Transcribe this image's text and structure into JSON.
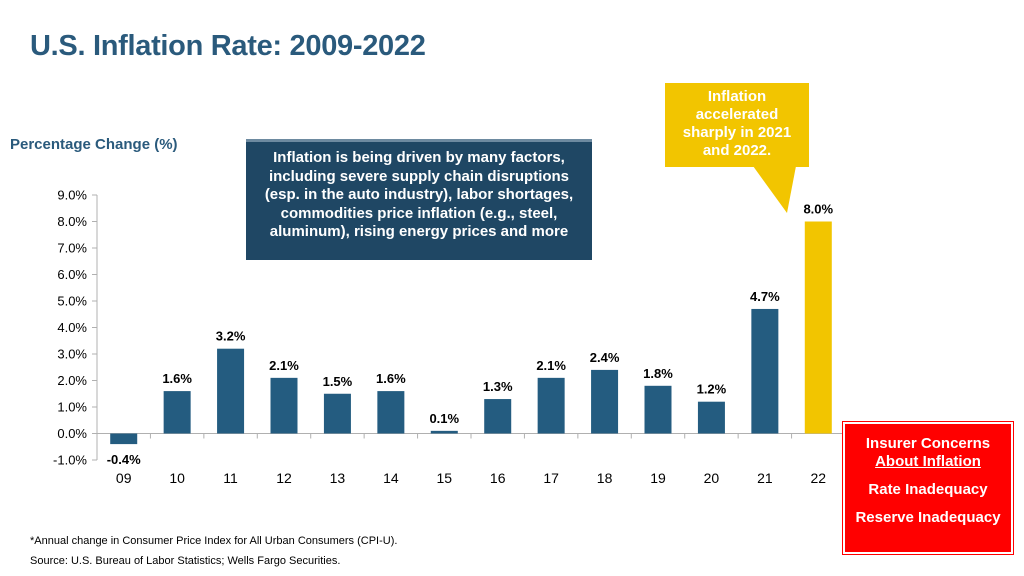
{
  "page": {
    "title": "U.S. Inflation Rate:  2009-2022",
    "callout_dark": "Inflation is being driven by many factors, including severe supply chain disruptions (esp. in the auto industry), labor shortages, commodities price inflation (e.g., steel, aluminum), rising energy prices and more",
    "callout_gold": "Inflation accelerated sharply in 2021 and 2022.",
    "concerns": {
      "title_line1": "Insurer Concerns",
      "title_line2": "About Inflation",
      "item1": "Rate Inadequacy",
      "item2": "Reserve Inadequacy"
    },
    "footnote": "*Annual change in Consumer Price Index for All Urban Consumers (CPI-U).",
    "source": "Source: U.S. Bureau of Labor Statistics; Wells Fargo Securities."
  },
  "colors": {
    "bar": "#245c80",
    "highlight": "#f2c500",
    "title": "#2a5a7c",
    "dark_box": "#1f4764",
    "red_box": "#ff0000"
  },
  "chart_data": {
    "type": "bar",
    "title": "U.S. Inflation Rate:  2009-2022",
    "ylabel": "Percentage Change (%)",
    "xlabel": "",
    "categories": [
      "09",
      "10",
      "11",
      "12",
      "13",
      "14",
      "15",
      "16",
      "17",
      "18",
      "19",
      "20",
      "21",
      "22"
    ],
    "values": [
      -0.4,
      1.6,
      3.2,
      2.1,
      1.5,
      1.6,
      0.1,
      1.3,
      2.1,
      2.4,
      1.8,
      1.2,
      4.7,
      8.0
    ],
    "data_labels": [
      "-0.4%",
      "1.6%",
      "3.2%",
      "2.1%",
      "1.5%",
      "1.6%",
      "0.1%",
      "1.3%",
      "2.1%",
      "2.4%",
      "1.8%",
      "1.2%",
      "4.7%",
      "8.0%"
    ],
    "highlight_index": 13,
    "ylim": [
      -1.0,
      9.0
    ],
    "yticks": [
      -1.0,
      0.0,
      1.0,
      2.0,
      3.0,
      4.0,
      5.0,
      6.0,
      7.0,
      8.0,
      9.0
    ],
    "ytick_labels": [
      "-1.0%",
      "0.0%",
      "1.0%",
      "2.0%",
      "3.0%",
      "4.0%",
      "5.0%",
      "6.0%",
      "7.0%",
      "8.0%",
      "9.0%"
    ],
    "grid": false,
    "legend": "none"
  }
}
